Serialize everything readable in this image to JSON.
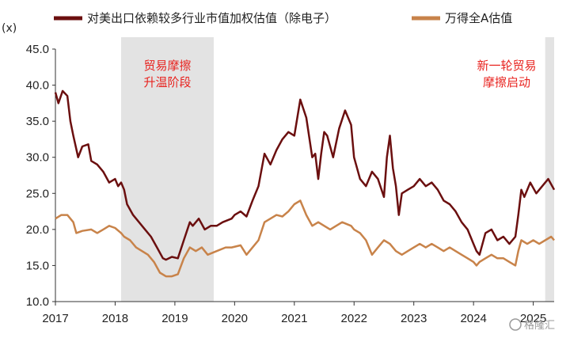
{
  "chart_data": {
    "type": "line",
    "unit_label": "(x)",
    "ylim": [
      10,
      45
    ],
    "yticks": [
      "10.0",
      "15.0",
      "20.0",
      "25.0",
      "30.0",
      "35.0",
      "40.0",
      "45.0"
    ],
    "xlim": [
      2017.0,
      2025.35
    ],
    "xticks": [
      "2017",
      "2018",
      "2019",
      "2020",
      "2021",
      "2022",
      "2023",
      "2024",
      "2025"
    ],
    "legend_position": "top",
    "grid": false,
    "colors": {
      "series1": "#6b0f0f",
      "series2": "#c8834a",
      "shade": "#e3e3e3",
      "annotation": "#e8231f"
    },
    "shaded_periods": [
      {
        "start": 2018.1,
        "end": 2019.65,
        "label_lines": [
          "贸易摩擦",
          "升温阶段"
        ]
      },
      {
        "start": 2025.2,
        "end": 2025.35,
        "label_lines": [
          "新一轮贸易",
          "摩擦启动"
        ]
      }
    ],
    "series": [
      {
        "name": "对美出口依赖较多行业市值加权估值（除电子）",
        "points": [
          [
            2017.0,
            39.0
          ],
          [
            2017.05,
            37.5
          ],
          [
            2017.12,
            39.2
          ],
          [
            2017.2,
            38.5
          ],
          [
            2017.25,
            35.0
          ],
          [
            2017.3,
            33.0
          ],
          [
            2017.38,
            30.0
          ],
          [
            2017.45,
            31.5
          ],
          [
            2017.55,
            31.8
          ],
          [
            2017.6,
            29.5
          ],
          [
            2017.7,
            29.0
          ],
          [
            2017.8,
            28.0
          ],
          [
            2017.9,
            26.5
          ],
          [
            2018.0,
            27.0
          ],
          [
            2018.05,
            26.0
          ],
          [
            2018.1,
            26.5
          ],
          [
            2018.15,
            25.5
          ],
          [
            2018.2,
            23.5
          ],
          [
            2018.3,
            22.0
          ],
          [
            2018.4,
            21.0
          ],
          [
            2018.5,
            20.0
          ],
          [
            2018.6,
            19.0
          ],
          [
            2018.7,
            17.5
          ],
          [
            2018.8,
            16.0
          ],
          [
            2018.85,
            15.8
          ],
          [
            2018.95,
            16.2
          ],
          [
            2019.05,
            16.0
          ],
          [
            2019.15,
            18.5
          ],
          [
            2019.25,
            21.0
          ],
          [
            2019.3,
            20.5
          ],
          [
            2019.4,
            21.5
          ],
          [
            2019.5,
            20.0
          ],
          [
            2019.6,
            20.5
          ],
          [
            2019.7,
            20.5
          ],
          [
            2019.8,
            21.0
          ],
          [
            2019.95,
            21.5
          ],
          [
            2020.0,
            22.0
          ],
          [
            2020.1,
            22.5
          ],
          [
            2020.2,
            21.8
          ],
          [
            2020.3,
            24.0
          ],
          [
            2020.4,
            26.0
          ],
          [
            2020.5,
            30.5
          ],
          [
            2020.6,
            29.0
          ],
          [
            2020.7,
            31.0
          ],
          [
            2020.8,
            32.5
          ],
          [
            2020.9,
            33.5
          ],
          [
            2021.0,
            33.0
          ],
          [
            2021.1,
            38.0
          ],
          [
            2021.2,
            35.5
          ],
          [
            2021.3,
            30.0
          ],
          [
            2021.35,
            30.5
          ],
          [
            2021.4,
            27.0
          ],
          [
            2021.45,
            30.5
          ],
          [
            2021.5,
            33.5
          ],
          [
            2021.55,
            33.0
          ],
          [
            2021.65,
            30.0
          ],
          [
            2021.75,
            34.0
          ],
          [
            2021.85,
            36.5
          ],
          [
            2021.95,
            34.5
          ],
          [
            2022.0,
            30.0
          ],
          [
            2022.1,
            27.0
          ],
          [
            2022.2,
            26.0
          ],
          [
            2022.3,
            28.0
          ],
          [
            2022.4,
            27.0
          ],
          [
            2022.5,
            24.5
          ],
          [
            2022.55,
            30.0
          ],
          [
            2022.6,
            33.0
          ],
          [
            2022.65,
            28.5
          ],
          [
            2022.7,
            26.0
          ],
          [
            2022.75,
            22.0
          ],
          [
            2022.8,
            25.0
          ],
          [
            2022.9,
            25.5
          ],
          [
            2023.0,
            26.0
          ],
          [
            2023.1,
            27.0
          ],
          [
            2023.2,
            26.0
          ],
          [
            2023.3,
            26.5
          ],
          [
            2023.4,
            25.5
          ],
          [
            2023.5,
            24.0
          ],
          [
            2023.6,
            23.5
          ],
          [
            2023.7,
            22.5
          ],
          [
            2023.8,
            21.0
          ],
          [
            2023.9,
            20.0
          ],
          [
            2024.0,
            18.0
          ],
          [
            2024.05,
            17.0
          ],
          [
            2024.1,
            16.5
          ],
          [
            2024.2,
            19.5
          ],
          [
            2024.3,
            20.0
          ],
          [
            2024.4,
            18.5
          ],
          [
            2024.5,
            19.0
          ],
          [
            2024.6,
            18.0
          ],
          [
            2024.7,
            19.0
          ],
          [
            2024.75,
            22.0
          ],
          [
            2024.8,
            25.5
          ],
          [
            2024.85,
            24.5
          ],
          [
            2024.95,
            26.5
          ],
          [
            2025.05,
            25.0
          ],
          [
            2025.15,
            26.0
          ],
          [
            2025.25,
            27.0
          ],
          [
            2025.35,
            25.5
          ]
        ]
      },
      {
        "name": "万得全A估值",
        "points": [
          [
            2017.0,
            21.5
          ],
          [
            2017.1,
            22.0
          ],
          [
            2017.2,
            22.0
          ],
          [
            2017.3,
            21.0
          ],
          [
            2017.35,
            19.5
          ],
          [
            2017.45,
            19.8
          ],
          [
            2017.6,
            20.0
          ],
          [
            2017.7,
            19.5
          ],
          [
            2017.8,
            20.0
          ],
          [
            2017.9,
            20.5
          ],
          [
            2018.0,
            20.2
          ],
          [
            2018.1,
            19.5
          ],
          [
            2018.15,
            19.0
          ],
          [
            2018.25,
            18.5
          ],
          [
            2018.35,
            17.5
          ],
          [
            2018.45,
            17.0
          ],
          [
            2018.55,
            16.5
          ],
          [
            2018.65,
            15.5
          ],
          [
            2018.75,
            14.0
          ],
          [
            2018.85,
            13.5
          ],
          [
            2018.95,
            13.5
          ],
          [
            2019.05,
            13.8
          ],
          [
            2019.15,
            16.0
          ],
          [
            2019.25,
            17.5
          ],
          [
            2019.35,
            17.0
          ],
          [
            2019.45,
            17.5
          ],
          [
            2019.55,
            16.5
          ],
          [
            2019.7,
            17.0
          ],
          [
            2019.85,
            17.5
          ],
          [
            2019.95,
            17.5
          ],
          [
            2020.1,
            17.8
          ],
          [
            2020.2,
            16.5
          ],
          [
            2020.3,
            17.5
          ],
          [
            2020.4,
            18.5
          ],
          [
            2020.5,
            21.0
          ],
          [
            2020.6,
            21.5
          ],
          [
            2020.7,
            22.0
          ],
          [
            2020.8,
            21.8
          ],
          [
            2020.9,
            22.5
          ],
          [
            2021.0,
            23.5
          ],
          [
            2021.1,
            24.0
          ],
          [
            2021.2,
            22.0
          ],
          [
            2021.3,
            20.5
          ],
          [
            2021.4,
            21.0
          ],
          [
            2021.5,
            20.5
          ],
          [
            2021.6,
            20.0
          ],
          [
            2021.7,
            20.5
          ],
          [
            2021.8,
            21.0
          ],
          [
            2021.95,
            20.5
          ],
          [
            2022.0,
            20.0
          ],
          [
            2022.1,
            19.5
          ],
          [
            2022.2,
            18.5
          ],
          [
            2022.3,
            16.5
          ],
          [
            2022.4,
            17.5
          ],
          [
            2022.5,
            18.5
          ],
          [
            2022.6,
            18.0
          ],
          [
            2022.7,
            17.0
          ],
          [
            2022.8,
            16.5
          ],
          [
            2022.9,
            17.0
          ],
          [
            2023.0,
            17.5
          ],
          [
            2023.1,
            18.0
          ],
          [
            2023.2,
            17.5
          ],
          [
            2023.3,
            18.0
          ],
          [
            2023.4,
            17.5
          ],
          [
            2023.5,
            17.0
          ],
          [
            2023.6,
            17.5
          ],
          [
            2023.7,
            17.0
          ],
          [
            2023.8,
            16.5
          ],
          [
            2023.9,
            16.0
          ],
          [
            2024.0,
            15.5
          ],
          [
            2024.05,
            15.0
          ],
          [
            2024.1,
            15.5
          ],
          [
            2024.2,
            16.0
          ],
          [
            2024.3,
            16.5
          ],
          [
            2024.4,
            16.0
          ],
          [
            2024.5,
            16.0
          ],
          [
            2024.6,
            15.5
          ],
          [
            2024.7,
            15.0
          ],
          [
            2024.75,
            17.0
          ],
          [
            2024.8,
            18.5
          ],
          [
            2024.9,
            18.0
          ],
          [
            2025.0,
            18.5
          ],
          [
            2025.1,
            18.0
          ],
          [
            2025.2,
            18.5
          ],
          [
            2025.3,
            19.0
          ],
          [
            2025.35,
            18.5
          ]
        ]
      }
    ]
  },
  "watermark": "格隆汇"
}
